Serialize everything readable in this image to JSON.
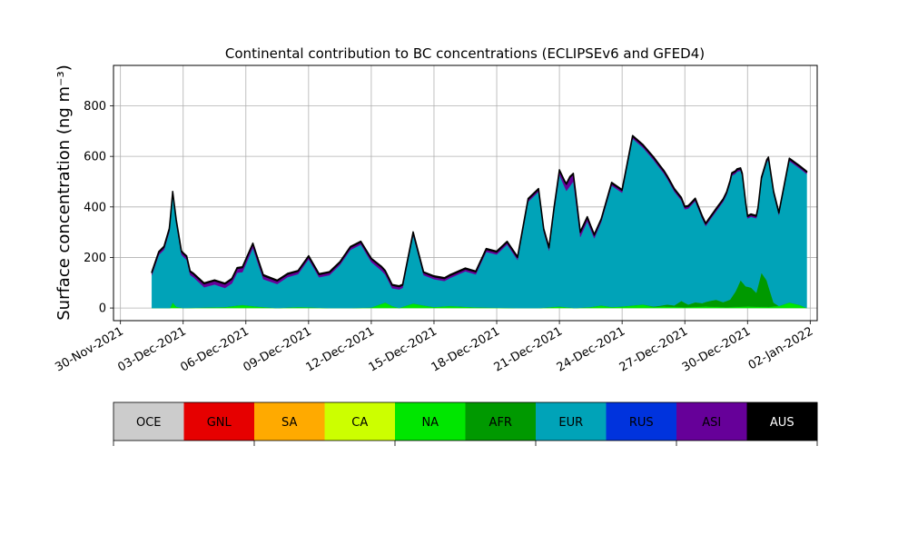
{
  "chart_data": {
    "type": "area",
    "title": "Continental contribution to BC concentrations (ECLIPSEv6 and GFED4)",
    "ylabel": "Surface concentration (ng m⁻³)",
    "xlabel": "",
    "ylim": [
      -50,
      960
    ],
    "yticks": [
      0,
      200,
      400,
      600,
      800
    ],
    "xlim": [
      "2021-11-29T16:00",
      "2022-01-02T08:00"
    ],
    "xticks": [
      "2021-11-30",
      "2021-12-03",
      "2021-12-06",
      "2021-12-09",
      "2021-12-12",
      "2021-12-15",
      "2021-12-18",
      "2021-12-21",
      "2021-12-24",
      "2021-12-27",
      "2021-12-30",
      "2022-01-02"
    ],
    "xtick_labels": [
      "30-Nov-2021",
      "03-Dec-2021",
      "06-Dec-2021",
      "09-Dec-2021",
      "12-Dec-2021",
      "15-Dec-2021",
      "18-Dec-2021",
      "21-Dec-2021",
      "24-Dec-2021",
      "27-Dec-2021",
      "30-Dec-2021",
      "02-Jan-2022"
    ],
    "grid": true,
    "legend_position": "below",
    "legend": [
      {
        "name": "OCE",
        "color": "#cccccc"
      },
      {
        "name": "GNL",
        "color": "#e60000"
      },
      {
        "name": "SA",
        "color": "#ffaa00"
      },
      {
        "name": "CA",
        "color": "#ccff00"
      },
      {
        "name": "NA",
        "color": "#00e600"
      },
      {
        "name": "AFR",
        "color": "#009900"
      },
      {
        "name": "EUR",
        "color": "#00a3b8"
      },
      {
        "name": "RUS",
        "color": "#0033dd"
      },
      {
        "name": "ASI",
        "color": "#660099"
      },
      {
        "name": "AUS",
        "color": "#000000"
      }
    ],
    "series": [
      {
        "name": "NA",
        "color": "#00e600",
        "x": [
          "2021-12-01T12:00",
          "2021-12-02T09:00",
          "2021-12-02T12:00",
          "2021-12-02T16:00",
          "2021-12-03T00:00",
          "2021-12-04T00:00",
          "2021-12-05T00:00",
          "2021-12-05T20:00",
          "2021-12-06T12:00",
          "2021-12-07T12:00",
          "2021-12-08T12:00",
          "2021-12-10T00:00",
          "2021-12-11T00:00",
          "2021-12-12T00:00",
          "2021-12-12T16:00",
          "2021-12-13T00:00",
          "2021-12-13T08:00",
          "2021-12-14T00:00",
          "2021-12-14T12:00",
          "2021-12-15T00:00",
          "2021-12-15T18:00",
          "2021-12-17T00:00",
          "2021-12-19T00:00",
          "2021-12-20T00:00",
          "2021-12-21T00:00",
          "2021-12-21T18:00",
          "2021-12-22T12:00",
          "2021-12-23T00:00",
          "2021-12-23T12:00",
          "2021-12-24T00:00",
          "2021-12-25T00:00",
          "2021-12-25T12:00",
          "2021-12-26T00:00",
          "2021-12-27T00:00",
          "2021-12-28T00:00",
          "2021-12-29T00:00",
          "2021-12-30T00:00",
          "2021-12-31T00:00",
          "2021-12-31T12:00",
          "2022-01-01T00:00",
          "2022-01-01T12:00",
          "2022-01-01T20:00"
        ],
        "values": [
          0,
          0,
          22,
          5,
          0,
          2,
          4,
          12,
          6,
          0,
          4,
          0,
          0,
          2,
          22,
          8,
          0,
          18,
          10,
          4,
          8,
          3,
          0,
          0,
          6,
          0,
          4,
          10,
          4,
          6,
          14,
          4,
          6,
          3,
          6,
          3,
          6,
          4,
          8,
          22,
          12,
          0
        ]
      },
      {
        "name": "AFR",
        "color": "#009900",
        "x": [
          "2021-12-01T12:00",
          "2021-12-25T00:00",
          "2021-12-25T12:00",
          "2021-12-25T20:00",
          "2021-12-26T04:00",
          "2021-12-26T12:00",
          "2021-12-26T20:00",
          "2021-12-27T04:00",
          "2021-12-27T12:00",
          "2021-12-27T20:00",
          "2021-12-28T04:00",
          "2021-12-28T12:00",
          "2021-12-28T20:00",
          "2021-12-29T04:00",
          "2021-12-29T10:00",
          "2021-12-29T16:00",
          "2021-12-29T22:00",
          "2021-12-30T04:00",
          "2021-12-30T10:00",
          "2021-12-30T16:00",
          "2021-12-30T22:00",
          "2021-12-31T06:00",
          "2021-12-31T12:00",
          "2022-01-01T20:00"
        ],
        "values": [
          0,
          0,
          2,
          4,
          8,
          6,
          25,
          10,
          18,
          14,
          22,
          28,
          20,
          30,
          60,
          105,
          80,
          75,
          55,
          135,
          105,
          15,
          0,
          0
        ]
      },
      {
        "name": "EUR",
        "color": "#00a3b8",
        "x": [
          "2021-12-01T12:00",
          "2021-12-01T20:00",
          "2021-12-02T02:00",
          "2021-12-02T08:00",
          "2021-12-02T12:00",
          "2021-12-02T16:00",
          "2021-12-02T22:00",
          "2021-12-03T04:00",
          "2021-12-03T08:00",
          "2021-12-03T12:00",
          "2021-12-04T00:00",
          "2021-12-04T12:00",
          "2021-12-05T00:00",
          "2021-12-05T08:00",
          "2021-12-05T14:00",
          "2021-12-05T20:00",
          "2021-12-06T08:00",
          "2021-12-06T20:00",
          "2021-12-07T12:00",
          "2021-12-08T00:00",
          "2021-12-08T12:00",
          "2021-12-09T00:00",
          "2021-12-09T12:00",
          "2021-12-10T00:00",
          "2021-12-10T12:00",
          "2021-12-11T00:00",
          "2021-12-11T12:00",
          "2021-12-12T00:00",
          "2021-12-12T12:00",
          "2021-12-13T00:00",
          "2021-12-13T12:00",
          "2021-12-14T00:00",
          "2021-12-14T12:00",
          "2021-12-15T00:00",
          "2021-12-15T12:00",
          "2021-12-16T00:00",
          "2021-12-16T12:00",
          "2021-12-17T00:00",
          "2021-12-17T12:00",
          "2021-12-18T00:00",
          "2021-12-18T12:00",
          "2021-12-19T00:00",
          "2021-12-19T12:00",
          "2021-12-20T00:00",
          "2021-12-20T06:00",
          "2021-12-20T12:00",
          "2021-12-20T18:00",
          "2021-12-21T00:00",
          "2021-12-21T08:00",
          "2021-12-21T16:00",
          "2021-12-22T00:00",
          "2021-12-22T08:00",
          "2021-12-22T16:00",
          "2021-12-23T00:00",
          "2021-12-23T12:00",
          "2021-12-24T00:00",
          "2021-12-24T12:00",
          "2021-12-25T00:00",
          "2021-12-25T12:00",
          "2021-12-26T00:00",
          "2021-12-26T12:00",
          "2021-12-27T00:00",
          "2021-12-27T12:00",
          "2021-12-28T00:00",
          "2021-12-28T12:00",
          "2021-12-29T00:00",
          "2021-12-29T06:00",
          "2021-12-29T12:00",
          "2021-12-29T18:00",
          "2021-12-30T00:00",
          "2021-12-30T12:00",
          "2021-12-31T00:00",
          "2021-12-31T12:00",
          "2022-01-01T00:00",
          "2022-01-01T12:00",
          "2022-01-01T20:00"
        ],
        "values": [
          130,
          210,
          230,
          300,
          425,
          330,
          210,
          190,
          130,
          120,
          80,
          90,
          75,
          90,
          130,
          130,
          230,
          110,
          95,
          120,
          130,
          190,
          120,
          130,
          170,
          230,
          250,
          180,
          130,
          70,
          75,
          270,
          120,
          110,
          100,
          120,
          140,
          130,
          220,
          210,
          250,
          190,
          420,
          460,
          300,
          225,
          380,
          520,
          460,
          500,
          280,
          340,
          270,
          330,
          480,
          450,
          660,
          620,
          580,
          520,
          450,
          370,
          400,
          300,
          350,
          420,
          480,
          460,
          420,
          270,
          300,
          500,
          360,
          560,
          540,
          530
        ]
      },
      {
        "name": "ASI",
        "color": "#660099",
        "x": [
          "2021-12-01T12:00",
          "2021-12-04T00:00",
          "2021-12-05T20:00",
          "2021-12-07T12:00",
          "2021-12-11T12:00",
          "2021-12-12T12:00",
          "2021-12-13T00:00",
          "2021-12-14T00:00",
          "2021-12-20T12:00",
          "2021-12-21T06:00",
          "2021-12-21T12:00",
          "2021-12-22T00:00",
          "2021-12-23T00:00",
          "2021-12-31T00:00",
          "2022-01-01T20:00"
        ],
        "values": [
          10,
          14,
          18,
          12,
          10,
          14,
          12,
          10,
          10,
          22,
          35,
          18,
          10,
          8,
          8
        ]
      },
      {
        "name": "AUS",
        "color": "#000000",
        "x": [
          "2021-12-01T12:00",
          "2021-12-23T00:00",
          "2022-01-01T20:00"
        ],
        "values": [
          3,
          3,
          3
        ]
      }
    ]
  }
}
